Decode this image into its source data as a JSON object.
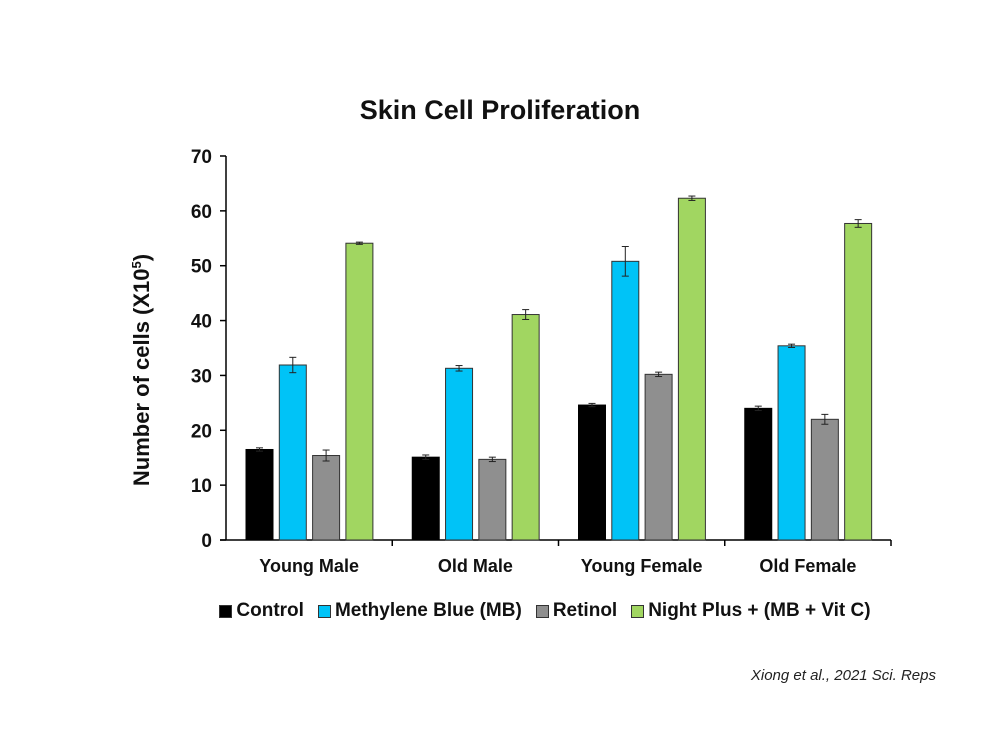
{
  "chart_data": {
    "type": "bar",
    "title": "Skin Cell Proliferation",
    "ylabel": "Number of cells (X10",
    "ylabel_sup": "5",
    "ylabel_end": ")",
    "xlabel": "",
    "ylim": [
      0,
      70
    ],
    "yticks": [
      0,
      10,
      20,
      30,
      40,
      50,
      60,
      70
    ],
    "grid": false,
    "legend_position": "bottom",
    "categories": [
      "Young Male",
      "Old Male",
      "Young Female",
      "Old Female"
    ],
    "series": [
      {
        "name": "Control",
        "color": "#000000",
        "values": [
          16.5,
          15.1,
          24.6,
          24.0
        ],
        "errors": [
          0.3,
          0.4,
          0.3,
          0.4
        ]
      },
      {
        "name": "Methylene Blue (MB)",
        "color": "#00c3f7",
        "values": [
          31.9,
          31.3,
          50.8,
          35.4
        ],
        "errors": [
          1.4,
          0.5,
          2.7,
          0.3
        ]
      },
      {
        "name": "Retinol",
        "color": "#8f8f8f",
        "values": [
          15.4,
          14.7,
          30.2,
          22.0
        ],
        "errors": [
          1.0,
          0.4,
          0.4,
          0.9
        ]
      },
      {
        "name": "Night Plus + (MB + Vit C)",
        "color": "#a1d661",
        "values": [
          54.1,
          41.1,
          62.3,
          57.7
        ],
        "errors": [
          0.2,
          0.9,
          0.4,
          0.7
        ]
      }
    ]
  },
  "citation": "Xiong et al., 2021 Sci. Reps"
}
